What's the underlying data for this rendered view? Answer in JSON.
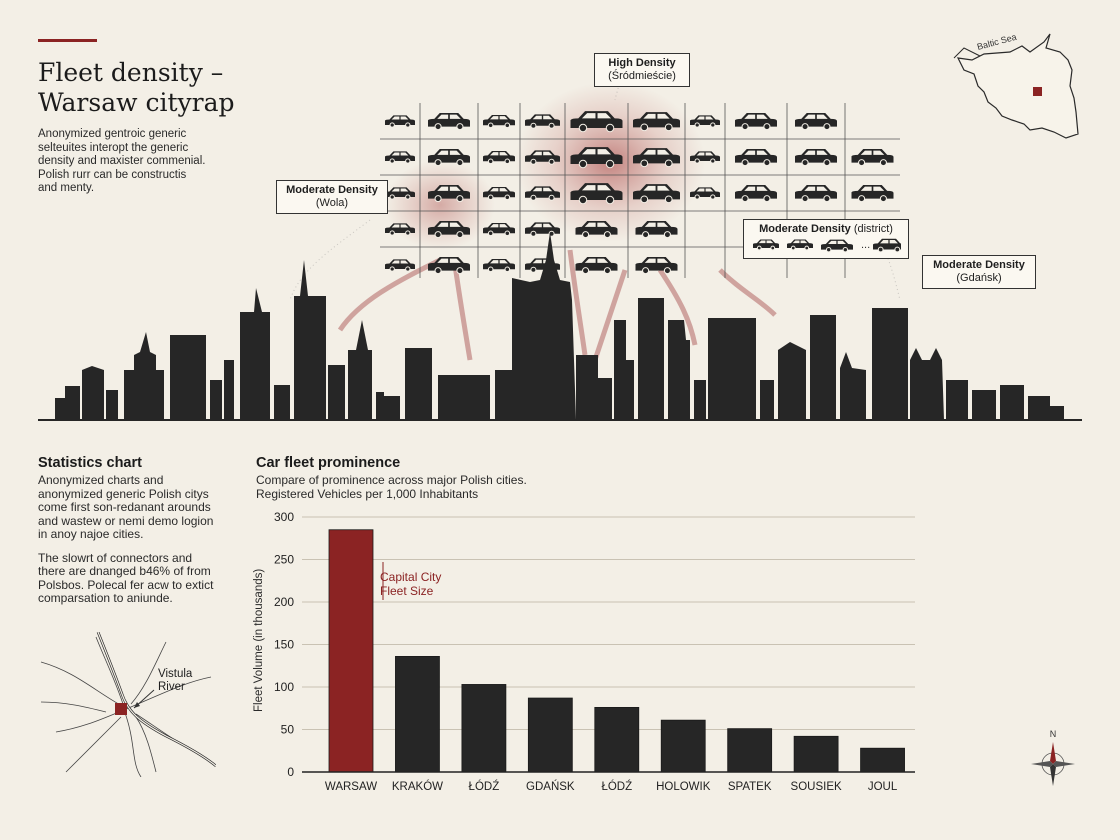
{
  "header": {
    "title_lines": [
      "Fleet density –",
      "Warsaw cityrap"
    ],
    "intro_lines": [
      "Anonymized gentroic generic",
      "selteuites interopt the generic",
      "density and maxister commenial.",
      "Polish rurr can be constructis",
      "and menty."
    ]
  },
  "callouts": {
    "high": {
      "title": "High Density",
      "sub": "(Śródmieście)"
    },
    "wola": {
      "title": "Moderate Density",
      "sub": "(Wola)"
    },
    "district": {
      "title": "Moderate Density",
      "sub": "(district)",
      "more": "..."
    },
    "gdansk": {
      "title": "Moderate Density",
      "sub": "(Gdańsk)"
    }
  },
  "inset_map": {
    "sea_label": "Baltic Sea",
    "accent": "#8b2323"
  },
  "stats": {
    "heading": "Statistics chart",
    "paragraph1": [
      "Anonymized charts and",
      "anonymized generic Polish citys",
      "come first son-redanant arounds",
      "and wastew or nemi demo logion",
      "in anoy najoe cities."
    ],
    "paragraph2": [
      "The slowrt of connectors and",
      "there are dnanged b46% of from",
      "Polsbos. Polecal fer acw to extict",
      "comparsation to aniunde."
    ]
  },
  "river_map": {
    "label_lines": [
      "Vistula",
      "River"
    ]
  },
  "compass": {
    "north_label": "N",
    "icon": "compass-rose-icon"
  },
  "colors": {
    "accent": "#8b2323",
    "bar": "#262626",
    "background": "#f3efe6"
  },
  "chart_data": {
    "type": "bar",
    "title": "Car fleet prominence",
    "subtitle_lines": [
      "Compare of prominence across major Polish cities.",
      "Registered Vehicles per 1,000 Inhabitants"
    ],
    "ylabel": "Fleet Volume (in thousands)",
    "categories": [
      "WARSAW",
      "KRAKÓW",
      "ŁÓDŹ",
      "GDAŃSK",
      "ŁÓDŹ",
      "HOLOWIK",
      "SPATEK",
      "SOUSIEK",
      "JOUL"
    ],
    "values": [
      285,
      136,
      103,
      87,
      76,
      61,
      51,
      42,
      28
    ],
    "highlight_index": 0,
    "ylim": [
      0,
      300
    ],
    "yticks": [
      0,
      50,
      100,
      150,
      200,
      250,
      300
    ],
    "grid": true,
    "annotation_lines": [
      "Capital City",
      "Fleet Size"
    ]
  }
}
